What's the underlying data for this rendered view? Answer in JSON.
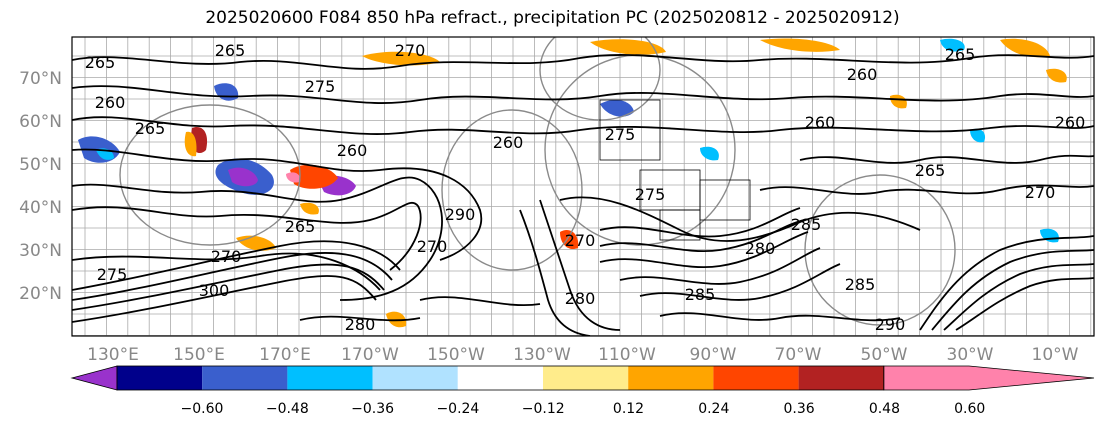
{
  "title": "2025020600 F084 850 hPa refract., precipitation PC (2025020812 - 2025020912)",
  "lat_labels": [
    "70°N",
    "60°N",
    "50°N",
    "40°N",
    "30°N",
    "20°N"
  ],
  "lon_labels": [
    "130°E",
    "150°E",
    "170°E",
    "170°W",
    "150°W",
    "130°W",
    "110°W",
    "90°W",
    "70°W",
    "50°W",
    "30°W",
    "10°W"
  ],
  "colorbar": {
    "tick_labels": [
      "−0.60",
      "−0.48",
      "−0.36",
      "−0.24",
      "−0.12",
      "0.12",
      "0.24",
      "0.36",
      "0.48",
      "0.60"
    ],
    "colors": [
      "#9932cc",
      "#00008b",
      "#3a5fcd",
      "#00bfff",
      "#b0e2ff",
      "#ffffff",
      "#ffec8b",
      "#ffa500",
      "#ff4500",
      "#b22222",
      "#ff82ab",
      "#ff82ab"
    ]
  },
  "contour_labels": [
    "265",
    "270",
    "260",
    "265",
    "260",
    "260",
    "265",
    "275",
    "270",
    "260",
    "265",
    "265",
    "260",
    "270",
    "275",
    "260",
    "270",
    "265",
    "280",
    "285",
    "290",
    "280",
    "285",
    "275",
    "270",
    "300",
    "290",
    "280",
    "285",
    "275"
  ]
}
